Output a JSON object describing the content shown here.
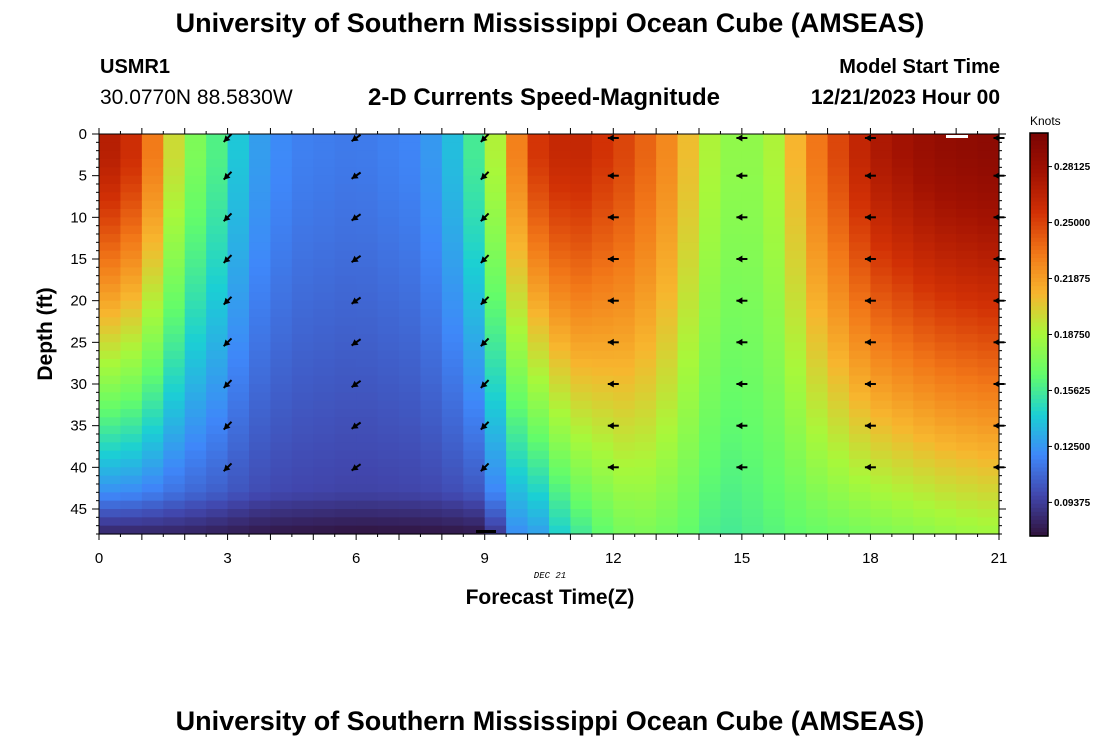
{
  "header": {
    "title": "University of Southern Mississippi Ocean Cube (AMSEAS)",
    "station_id": "USMR1",
    "coordinates": "30.0770N  88.5830W",
    "model_start_label": "Model Start Time",
    "model_start_value": "12/21/2023 Hour 00"
  },
  "footer": {
    "title": "University of Southern Mississippi Ocean Cube (AMSEAS)"
  },
  "colors": {
    "colormap": [
      "#30123b",
      "#4146ac",
      "#3f87f9",
      "#1bcfd4",
      "#62fc6b",
      "#a8f83a",
      "#f7b62e",
      "#f27818",
      "#d23105",
      "#a21202",
      "#7a0403"
    ]
  },
  "chart_data": {
    "type": "heatmap",
    "title": "2-D Currents Speed-Magnitude",
    "xlabel": "Forecast Time(Z)",
    "ylabel": "Depth (ft)",
    "date_label": "DEC 21",
    "xlim": [
      0,
      21
    ],
    "ylim": [
      0,
      48
    ],
    "x_ticks": [
      "0",
      "3",
      "6",
      "9",
      "12",
      "15",
      "18",
      "21"
    ],
    "y_ticks": [
      "0",
      "5",
      "10",
      "15",
      "20",
      "25",
      "30",
      "35",
      "40",
      "45"
    ],
    "colorbar": {
      "label": "Knots",
      "range": [
        0.075,
        0.3
      ],
      "tick_values": [
        0.09375,
        0.125,
        0.15625,
        0.1875,
        0.21875,
        0.25,
        0.28125
      ],
      "tick_labels": [
        "0.09375",
        "0.12500",
        "0.15625",
        "0.18750",
        "0.21875",
        "0.25000",
        "0.28125"
      ]
    },
    "vector_times": [
      3,
      6,
      9,
      12,
      15,
      18,
      21
    ],
    "vector_depths": [
      0,
      5,
      10,
      15,
      20,
      25,
      30,
      35,
      40
    ],
    "vector_directions_deg": [
      225,
      235,
      225,
      270,
      270,
      270,
      270
    ]
  }
}
